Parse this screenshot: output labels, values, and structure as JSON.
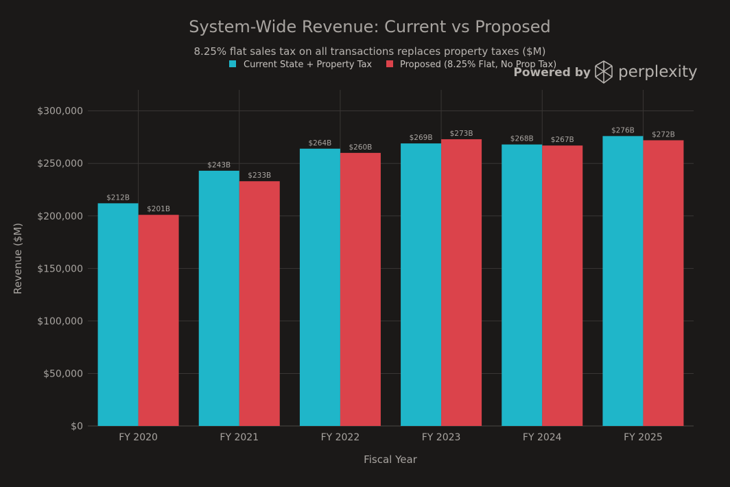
{
  "chart_data": {
    "type": "bar",
    "title": "System-Wide Revenue: Current vs Proposed",
    "subtitle": "8.25% flat sales tax on all transactions replaces property taxes ($M)",
    "xlabel": "Fiscal Year",
    "ylabel": "Revenue ($M)",
    "categories": [
      "FY 2020",
      "FY 2021",
      "FY 2022",
      "FY 2023",
      "FY 2024",
      "FY 2025"
    ],
    "series": [
      {
        "name": "Current State + Property Tax",
        "color": "#1fb6c9",
        "values": [
          212000,
          243000,
          264000,
          269000,
          268000,
          276000
        ],
        "labels": [
          "$212B",
          "$243B",
          "$264B",
          "$269B",
          "$268B",
          "$276B"
        ]
      },
      {
        "name": "Proposed (8.25% Flat, No Prop Tax)",
        "color": "#db434b",
        "values": [
          201000,
          233000,
          260000,
          273000,
          267000,
          272000
        ],
        "labels": [
          "$201B",
          "$233B",
          "$260B",
          "$273B",
          "$267B",
          "$272B"
        ]
      }
    ],
    "ylim": [
      0,
      320000
    ],
    "yticks": [
      0,
      50000,
      100000,
      150000,
      200000,
      250000,
      300000
    ],
    "ytick_labels": [
      "$0",
      "$50,000",
      "$100,000",
      "$150,000",
      "$200,000",
      "$250,000",
      "$300,000"
    ],
    "grid": true,
    "legend_position": "top-center"
  },
  "branding": {
    "powered_by": "Powered by",
    "brand_name": "perplexity",
    "logo_icon": "perplexity-logo-icon"
  }
}
